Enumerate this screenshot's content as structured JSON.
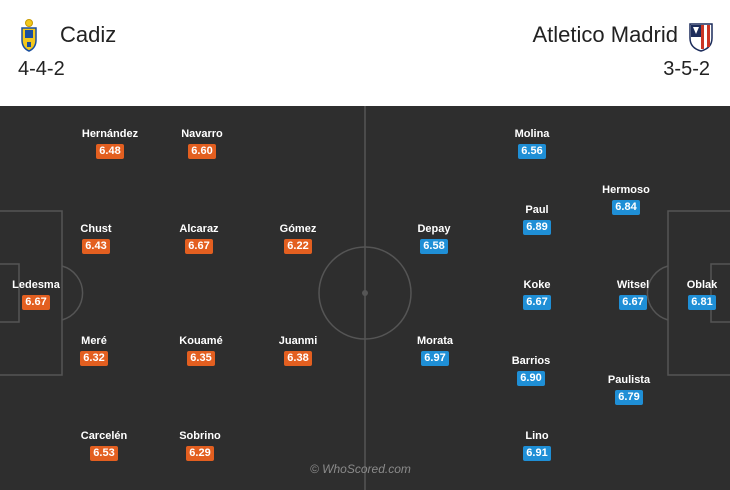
{
  "home": {
    "name": "Cadiz",
    "formation": "4-4-2",
    "crest_icon": "cadiz-crest-icon",
    "rating_color": "#e35f20",
    "players": [
      {
        "name": "Hernández",
        "rating": "6.48"
      },
      {
        "name": "Navarro",
        "rating": "6.60"
      },
      {
        "name": "Chust",
        "rating": "6.43"
      },
      {
        "name": "Alcaraz",
        "rating": "6.67"
      },
      {
        "name": "Gómez",
        "rating": "6.22"
      },
      {
        "name": "Ledesma",
        "rating": "6.67"
      },
      {
        "name": "Meré",
        "rating": "6.32"
      },
      {
        "name": "Kouamé",
        "rating": "6.35"
      },
      {
        "name": "Juanmi",
        "rating": "6.38"
      },
      {
        "name": "Carcelén",
        "rating": "6.53"
      },
      {
        "name": "Sobrino",
        "rating": "6.29"
      }
    ]
  },
  "away": {
    "name": "Atletico Madrid",
    "formation": "3-5-2",
    "crest_icon": "atletico-madrid-crest-icon",
    "rating_color": "#1f8fd6",
    "players": [
      {
        "name": "Molina",
        "rating": "6.56"
      },
      {
        "name": "Hermoso",
        "rating": "6.84"
      },
      {
        "name": "Paul",
        "rating": "6.89"
      },
      {
        "name": "Depay",
        "rating": "6.58"
      },
      {
        "name": "Koke",
        "rating": "6.67"
      },
      {
        "name": "Witsel",
        "rating": "6.67"
      },
      {
        "name": "Oblak",
        "rating": "6.81"
      },
      {
        "name": "Morata",
        "rating": "6.97"
      },
      {
        "name": "Barrios",
        "rating": "6.90"
      },
      {
        "name": "Paulista",
        "rating": "6.79"
      },
      {
        "name": "Lino",
        "rating": "6.91"
      }
    ]
  },
  "watermark": "© WhoScored.com",
  "colors": {
    "pitch": "#2e2e2e",
    "lines": "#555555"
  }
}
